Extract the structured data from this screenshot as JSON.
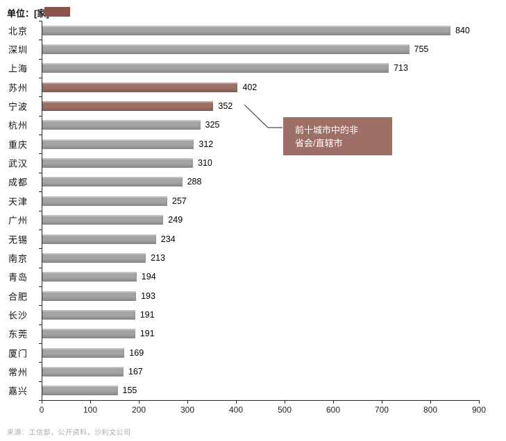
{
  "header": {
    "unit_label": "单位：[家]"
  },
  "chart_data": {
    "type": "bar",
    "orientation": "horizontal",
    "title": "",
    "xlabel": "",
    "ylabel": "",
    "categories": [
      "北京",
      "深圳",
      "上海",
      "苏州",
      "宁波",
      "杭州",
      "重庆",
      "武汉",
      "成都",
      "天津",
      "广州",
      "无锡",
      "南京",
      "青岛",
      "合肥",
      "长沙",
      "东莞",
      "厦门",
      "常州",
      "嘉兴"
    ],
    "values": [
      840,
      755,
      713,
      402,
      352,
      325,
      312,
      310,
      288,
      257,
      249,
      234,
      213,
      194,
      193,
      191,
      191,
      169,
      167,
      155
    ],
    "highlight_indices": [
      3,
      4
    ],
    "x_ticks": [
      0,
      100,
      200,
      300,
      400,
      500,
      600,
      700,
      800,
      900
    ],
    "xlim": [
      0,
      900
    ],
    "grid": false,
    "legend_position": "none",
    "annotation": {
      "line1": "前十城市中的非",
      "line2": "省会/直辖市"
    },
    "colors": {
      "bar_gray": "#a4a4a4",
      "bar_highlight": "#9d6f67",
      "annotation_bg": "#9d6f67",
      "legend_swatch": "#8a544c",
      "axis": "#262626"
    }
  },
  "footer": {
    "source": "来源：工信部，公开资料，沙利文公司"
  }
}
